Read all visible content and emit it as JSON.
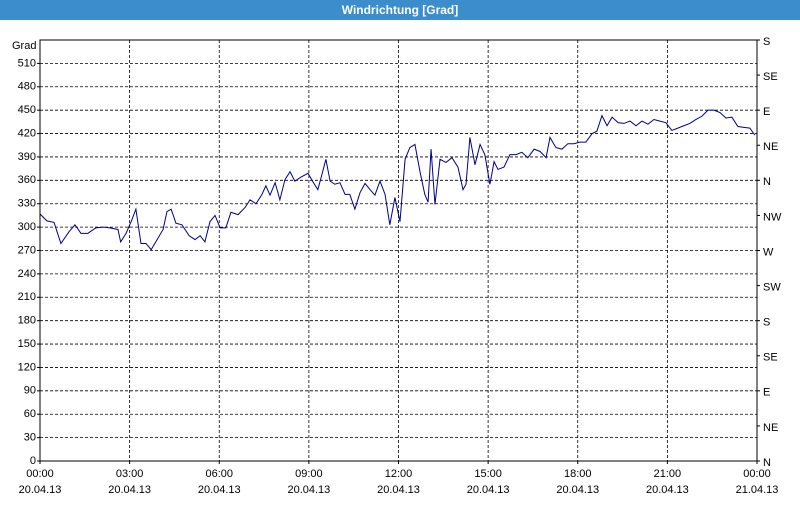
{
  "chart_data": {
    "type": "line",
    "title": "Windrichtung [Grad]",
    "y_label": "Grad",
    "color": "#00008b",
    "grid": true,
    "xlim": [
      0,
      24
    ],
    "ylim": [
      0,
      540
    ],
    "y2lim": [
      0,
      540
    ],
    "xticks": [
      {
        "value": 0,
        "label": "00:00 20.04.13"
      },
      {
        "value": 3,
        "label": "03:00 20.04.13"
      },
      {
        "value": 6,
        "label": "06:00 20.04.13"
      },
      {
        "value": 9,
        "label": "09:00 20.04.13"
      },
      {
        "value": 12,
        "label": "12:00 20.04.13"
      },
      {
        "value": 15,
        "label": "15:00 20.04.13"
      },
      {
        "value": 18,
        "label": "18:00 20.04.13"
      },
      {
        "value": 21,
        "label": "21:00 20.04.13"
      },
      {
        "value": 24,
        "label": "00:00 21.04.13"
      }
    ],
    "yticks": [
      0,
      30,
      60,
      90,
      120,
      150,
      180,
      210,
      240,
      270,
      300,
      330,
      360,
      390,
      420,
      450,
      480,
      510
    ],
    "y2ticks": [
      {
        "value": 540,
        "label": "S"
      },
      {
        "value": 495,
        "label": "SE"
      },
      {
        "value": 450,
        "label": "E"
      },
      {
        "value": 405,
        "label": "NE"
      },
      {
        "value": 360,
        "label": "N"
      },
      {
        "value": 315,
        "label": "NW"
      },
      {
        "value": 270,
        "label": "W"
      },
      {
        "value": 225,
        "label": "SW"
      },
      {
        "value": 180,
        "label": "S"
      },
      {
        "value": 135,
        "label": "SE"
      },
      {
        "value": 90,
        "label": "E"
      },
      {
        "value": 45,
        "label": "NE"
      },
      {
        "value": 0,
        "label": "N"
      }
    ],
    "x": [
      0,
      0.23,
      0.47,
      0.7,
      0.97,
      1.17,
      1.37,
      1.6,
      1.87,
      2.13,
      2.34,
      2.61,
      2.7,
      2.88,
      3.05,
      3.21,
      3.38,
      3.55,
      3.72,
      3.92,
      4.12,
      4.25,
      4.39,
      4.55,
      4.75,
      4.99,
      5.19,
      5.36,
      5.52,
      5.69,
      5.86,
      6.03,
      6.22,
      6.39,
      6.63,
      6.86,
      7.03,
      7.23,
      7.43,
      7.56,
      7.7,
      7.87,
      8.03,
      8.2,
      8.37,
      8.53,
      8.73,
      8.97,
      9.17,
      9.3,
      9.44,
      9.57,
      9.71,
      9.87,
      10.04,
      10.21,
      10.37,
      10.54,
      10.71,
      10.88,
      11.05,
      11.21,
      11.38,
      11.55,
      11.71,
      11.88,
      12.05,
      12.22,
      12.38,
      12.55,
      12.72,
      12.88,
      12.99,
      13.09,
      13.22,
      13.39,
      13.59,
      13.79,
      13.99,
      14.16,
      14.26,
      14.39,
      14.56,
      14.73,
      14.89,
      15.06,
      15.2,
      15.33,
      15.53,
      15.73,
      15.93,
      16.13,
      16.33,
      16.54,
      16.74,
      16.94,
      17.07,
      17.27,
      17.47,
      17.67,
      17.87,
      18.07,
      18.27,
      18.48,
      18.64,
      18.81,
      18.98,
      19.15,
      19.35,
      19.55,
      19.75,
      19.95,
      20.15,
      20.35,
      20.55,
      20.75,
      20.95,
      21.15,
      21.35,
      21.55,
      21.75,
      21.95,
      22.15,
      22.36,
      22.56,
      22.76,
      22.96,
      23.16,
      23.36,
      23.56,
      23.76,
      23.93
    ],
    "values": [
      317,
      308,
      306,
      279,
      294,
      303,
      292,
      292,
      299,
      300,
      299,
      297,
      281,
      292,
      307,
      323,
      279,
      279,
      271,
      284,
      297,
      320,
      323,
      305,
      303,
      289,
      284,
      289,
      281,
      307,
      315,
      299,
      299,
      319,
      316,
      325,
      335,
      330,
      342,
      353,
      341,
      357,
      335,
      361,
      371,
      359,
      364,
      369,
      356,
      348,
      368,
      387,
      359,
      355,
      357,
      342,
      342,
      323,
      344,
      356,
      348,
      341,
      359,
      342,
      303,
      338,
      307,
      387,
      402,
      406,
      371,
      342,
      332,
      400,
      329,
      387,
      383,
      389,
      377,
      348,
      355,
      415,
      380,
      406,
      393,
      355,
      384,
      374,
      377,
      393,
      393,
      396,
      389,
      400,
      397,
      389,
      415,
      402,
      400,
      407,
      407,
      409,
      409,
      420,
      423,
      443,
      430,
      441,
      434,
      433,
      436,
      430,
      436,
      432,
      438,
      436,
      434,
      424,
      427,
      430,
      433,
      438,
      442,
      450,
      450,
      447,
      440,
      441,
      429,
      428,
      427,
      418
    ]
  }
}
